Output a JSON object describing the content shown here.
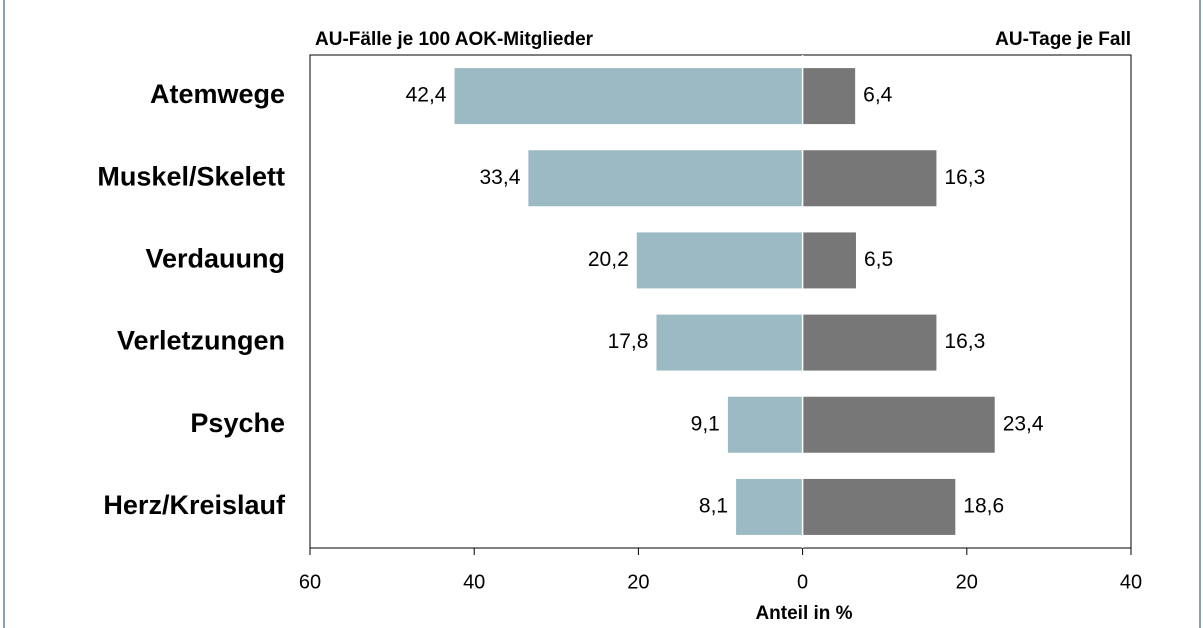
{
  "chart_data": {
    "type": "butterfly-bar",
    "left_header": "AU-Fälle je 100 AOK-Mitglieder",
    "right_header": "AU-Tage je Fall",
    "x_label": "Anteil in %",
    "categories": [
      "Atemwege",
      "Muskel/Skelett",
      "Verdauung",
      "Verletzungen",
      "Psyche",
      "Herz/Kreislauf"
    ],
    "series": [
      {
        "name": "AU-Fälle je 100 AOK-Mitglieder",
        "side": "left",
        "color": "#9bbac4",
        "values": [
          42.4,
          33.4,
          20.2,
          17.8,
          9.1,
          8.1
        ],
        "value_labels": [
          "42,4",
          "33,4",
          "20,2",
          "17,8",
          "9,1",
          "8,1"
        ]
      },
      {
        "name": "AU-Tage je Fall",
        "side": "right",
        "color": "#777777",
        "values": [
          6.4,
          16.3,
          6.5,
          16.3,
          23.4,
          18.6
        ],
        "value_labels": [
          "6,4",
          "16,3",
          "6,5",
          "16,3",
          "23,4",
          "18,6"
        ]
      }
    ],
    "xlim": [
      -60,
      40
    ],
    "xticks": [
      {
        "value": -60,
        "label": "60"
      },
      {
        "value": -40,
        "label": "40"
      },
      {
        "value": -20,
        "label": "20"
      },
      0,
      20,
      40
    ]
  }
}
